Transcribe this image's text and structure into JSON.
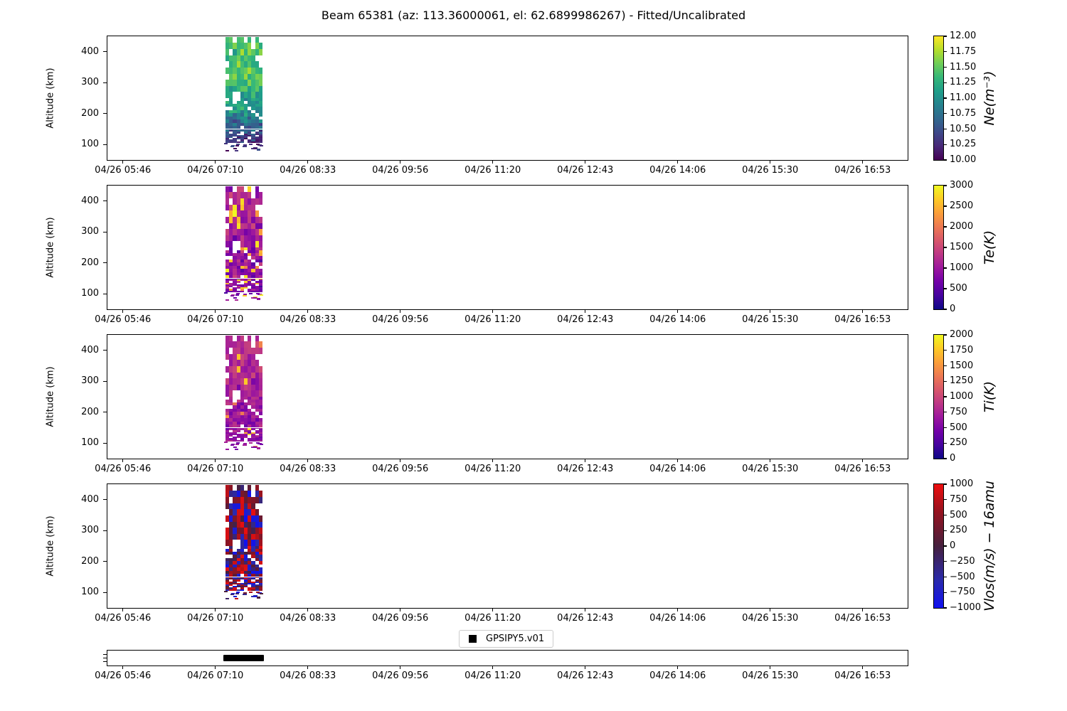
{
  "title": "Beam 65381 (az: 113.36000061, el: 62.6899986267) - Fitted/Uncalibrated",
  "legend": {
    "marker": "black-square",
    "label": "GPSIPY5.v01"
  },
  "axes": {
    "x_tick_labels": [
      "04/26 05:46",
      "04/26 07:10",
      "04/26 08:33",
      "04/26 09:56",
      "04/26 11:20",
      "04/26 12:43",
      "04/26 14:06",
      "04/26 15:30",
      "04/26 16:53"
    ],
    "y_label": "Altitude (km)",
    "y_tick_labels": [
      "400",
      "300",
      "200",
      "100"
    ],
    "y_range_km": [
      50,
      450
    ]
  },
  "colormaps": {
    "viridis": [
      [
        0,
        "#440154"
      ],
      [
        0.111,
        "#482878"
      ],
      [
        0.222,
        "#3e4989"
      ],
      [
        0.333,
        "#31688e"
      ],
      [
        0.444,
        "#26828e"
      ],
      [
        0.556,
        "#1f9e89"
      ],
      [
        0.667,
        "#35b779"
      ],
      [
        0.778,
        "#6ece58"
      ],
      [
        0.889,
        "#b5de2b"
      ],
      [
        1,
        "#fde725"
      ]
    ],
    "plasma": [
      [
        0,
        "#0d0887"
      ],
      [
        0.111,
        "#46039f"
      ],
      [
        0.222,
        "#7201a8"
      ],
      [
        0.333,
        "#9c179e"
      ],
      [
        0.444,
        "#bd3786"
      ],
      [
        0.556,
        "#d8576b"
      ],
      [
        0.667,
        "#ed7953"
      ],
      [
        0.778,
        "#fb9f3a"
      ],
      [
        0.889,
        "#fdca26"
      ],
      [
        1,
        "#f0f921"
      ]
    ],
    "red_dark_blue": [
      [
        0,
        "#1010f0"
      ],
      [
        0.22,
        "#2a2aad"
      ],
      [
        0.5,
        "#46203e"
      ],
      [
        0.78,
        "#96121f"
      ],
      [
        1,
        "#ee0e0e"
      ]
    ]
  },
  "chart_data": {
    "type": "heatmap-stack",
    "title": "Beam 65381 (az: 113.36000061, el: 62.6899986267) - Fitted/Uncalibrated",
    "x_tick_labels": [
      "04/26 05:46",
      "04/26 07:10",
      "04/26 08:33",
      "04/26 09:56",
      "04/26 11:20",
      "04/26 12:43",
      "04/26 14:06",
      "04/26 15:30",
      "04/26 16:53"
    ],
    "data_extent": {
      "time_start": "04/26 07:20",
      "time_end": "04/26 07:55",
      "alt_min_km": 80,
      "alt_max_km": 448
    },
    "altitude_bins_km": {
      "zones": [
        [
          80,
          150,
          5.1
        ],
        [
          150,
          250,
          10.2
        ],
        [
          250,
          448,
          19.8
        ]
      ]
    },
    "n_time_columns": 10,
    "presence": {
      "above_435": 0.7,
      "mid": 0.9,
      "low_92_105": 0.5,
      "below_92": 0.28,
      "seed": 500
    },
    "panels": [
      {
        "type": "heatmap",
        "id": "ne",
        "ylabel": "Altitude (km)",
        "y_ticks_km": [
          400,
          300,
          200,
          100
        ],
        "y_range_km": [
          50,
          450
        ],
        "colormap": "viridis",
        "value_range": [
          10.0,
          12.0
        ],
        "colorbar_label": "Ne(m⁻³)",
        "colorbar_tick_labels": [
          "12.00",
          "11.75",
          "11.50",
          "11.25",
          "11.00",
          "10.75",
          "10.50",
          "10.25",
          "10.00"
        ],
        "mode": "profile",
        "profile_by_alt": [
          [
            80,
            10.22
          ],
          [
            120,
            10.35
          ],
          [
            150,
            10.6
          ],
          [
            200,
            10.95
          ],
          [
            250,
            11.15
          ],
          [
            300,
            11.35
          ],
          [
            360,
            11.45
          ],
          [
            450,
            11.32
          ]
        ],
        "noise_amp": 0.42,
        "spike_prob": 0,
        "spike_range": [
          0,
          0
        ],
        "seed_salt": 11,
        "description": "log10 electron density: ~11.3-11.6 (green) above 250 km falling to ~10.2-10.5 (dark purple) below 150 km"
      },
      {
        "type": "heatmap",
        "id": "te",
        "ylabel": "Altitude (km)",
        "y_ticks_km": [
          400,
          300,
          200,
          100
        ],
        "y_range_km": [
          50,
          450
        ],
        "colormap": "plasma",
        "value_range": [
          0,
          3000
        ],
        "colorbar_label": "Te(K)",
        "colorbar_tick_labels": [
          "3000",
          "2500",
          "2000",
          "1500",
          "1000",
          "500",
          "0"
        ],
        "mode": "profile",
        "profile_by_alt": [
          [
            80,
            750
          ],
          [
            200,
            950
          ],
          [
            450,
            1200
          ]
        ],
        "noise_amp": 620,
        "spike_prob": 0.16,
        "spike_range": [
          2100,
          3000
        ],
        "seed_salt": 22,
        "description": "electron temperature: mostly 500-1500 K (purple/magenta) with scattered 2000-3000 K cells (orange/yellow)"
      },
      {
        "type": "heatmap",
        "id": "ti",
        "ylabel": "Altitude (km)",
        "y_ticks_km": [
          400,
          300,
          200,
          100
        ],
        "y_range_km": [
          50,
          450
        ],
        "colormap": "plasma",
        "value_range": [
          0,
          2000
        ],
        "colorbar_label": "Ti(K)",
        "colorbar_tick_labels": [
          "2000",
          "1750",
          "1500",
          "1250",
          "1000",
          "750",
          "500",
          "250",
          "0"
        ],
        "mode": "profile",
        "profile_by_alt": [
          [
            80,
            580
          ],
          [
            250,
            720
          ],
          [
            450,
            860
          ]
        ],
        "noise_amp": 300,
        "spike_prob": 0.08,
        "spike_range": [
          1250,
          2000
        ],
        "seed_salt": 33,
        "description": "ion temperature: mostly 400-900 K (purple/magenta) with occasional 1250-2000 K cells (salmon/yellow)"
      },
      {
        "type": "heatmap",
        "id": "vlos",
        "ylabel": "Altitude (km)",
        "y_ticks_km": [
          400,
          300,
          200,
          100
        ],
        "y_range_km": [
          50,
          450
        ],
        "colormap": "red_dark_blue",
        "value_range": [
          -1000,
          1000
        ],
        "colorbar_label": "Vlos(m/s) − 16amu",
        "colorbar_tick_labels": [
          "1000",
          "750",
          "500",
          "250",
          "0",
          "−250",
          "−500",
          "−750",
          "−1000"
        ],
        "mode": "diverging",
        "profile_by_alt": [
          [
            80,
            0
          ],
          [
            450,
            0
          ]
        ],
        "noise_amp": 1000,
        "spike_prob": 0,
        "spike_range": [
          0,
          0
        ],
        "seed_salt": 44,
        "description": "line-of-sight velocity: random mix of red (+) and blue (−) cells up to ±1000 m/s, darker near 0"
      }
    ],
    "timeline": {
      "type": "timeline",
      "series": [
        {
          "label": "GPSIPY5.v01",
          "marker": "square",
          "color": "#000000",
          "interval": [
            "04/26 07:17",
            "04/26 07:55"
          ]
        }
      ]
    }
  }
}
